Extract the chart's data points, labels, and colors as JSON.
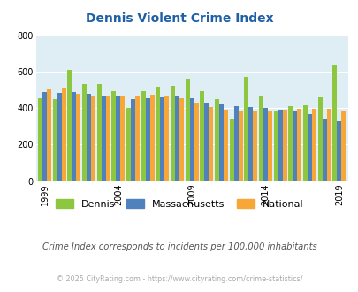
{
  "title": "Dennis Violent Crime Index",
  "subtitle": "Crime Index corresponds to incidents per 100,000 inhabitants",
  "footer": "© 2025 CityRating.com - https://www.cityrating.com/crime-statistics/",
  "years": [
    1999,
    2000,
    2001,
    2002,
    2003,
    2004,
    2005,
    2006,
    2007,
    2008,
    2009,
    2010,
    2011,
    2012,
    2013,
    2014,
    2015,
    2016,
    2017,
    2018,
    2019
  ],
  "dennis": [
    455,
    450,
    610,
    530,
    530,
    495,
    400,
    495,
    515,
    520,
    560,
    495,
    450,
    340,
    570,
    470,
    385,
    410,
    415,
    460,
    640
  ],
  "massachusetts": [
    490,
    485,
    490,
    480,
    470,
    465,
    450,
    455,
    460,
    465,
    455,
    430,
    425,
    410,
    405,
    400,
    390,
    380,
    365,
    340,
    330
  ],
  "national": [
    500,
    510,
    480,
    470,
    465,
    465,
    470,
    475,
    470,
    455,
    430,
    405,
    390,
    385,
    385,
    385,
    390,
    395,
    395,
    395,
    385
  ],
  "dennis_color": "#8dc63f",
  "massachusetts_color": "#4f81bd",
  "national_color": "#f6a737",
  "bg_color": "#deeef4",
  "ylim": [
    0,
    800
  ],
  "yticks": [
    0,
    200,
    400,
    600,
    800
  ],
  "title_color": "#1f5fa6",
  "subtitle_color": "#555555",
  "footer_color": "#aaaaaa",
  "tick_years": [
    1999,
    2004,
    2009,
    2014,
    2019
  ]
}
